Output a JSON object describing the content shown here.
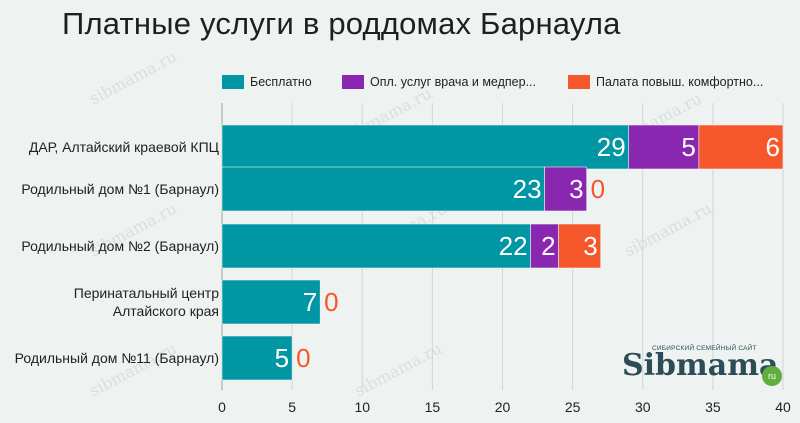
{
  "title": "Платные услуги в роддомах Барнаула",
  "watermark_text": "sibmama.ru",
  "logo": {
    "tagline": "СИБИРСКИЙ СЕМЕЙНЫЙ САЙТ",
    "word": "Sibmama",
    "suffix": "ru"
  },
  "colors": {
    "series_1": "#0096a4",
    "series_2": "#8a27b1",
    "series_3": "#f5572a",
    "zero_label": "#f5572a"
  },
  "chart_data": {
    "type": "bar",
    "orientation": "horizontal",
    "stacked": true,
    "title": "Платные услуги в роддомах Барнаула",
    "categories": [
      "ДАР, Алтайский краевой КПЦ",
      "Родильный дом №1 (Барнаул)",
      "Родильный дом №2 (Барнаул)",
      "Перинатальный центр Алтайского края",
      "Родильный дом №11 (Барнаул)"
    ],
    "category_lines": [
      [
        "ДАР, Алтайский краевой КПЦ"
      ],
      [
        "Родильный дом №1 (Барнаул)"
      ],
      [
        "Родильный дом №2 (Барнаул)"
      ],
      [
        "Перинатальный центр",
        "Алтайского края"
      ],
      [
        "Родильный дом №11 (Барнаул)"
      ]
    ],
    "series": [
      {
        "name": "Бесплатно",
        "values": [
          29,
          23,
          22,
          7,
          5
        ]
      },
      {
        "name": "Опл. услуг врача и медпер...",
        "values": [
          5,
          3,
          2,
          0,
          0
        ]
      },
      {
        "name": "Палата повыш. комфортно...",
        "values": [
          6,
          0,
          3,
          0,
          0
        ]
      }
    ],
    "data_labels": [
      [
        "29",
        "5",
        "6"
      ],
      [
        "23",
        "3",
        "0"
      ],
      [
        "22",
        "2",
        "3"
      ],
      [
        "7",
        "0"
      ],
      [
        "5",
        "0"
      ]
    ],
    "xlim": [
      0,
      40
    ],
    "x_ticks": [
      "0",
      "5",
      "10",
      "15",
      "20",
      "25",
      "30",
      "35",
      "40"
    ],
    "grid": "vertical",
    "legend_position": "top"
  }
}
